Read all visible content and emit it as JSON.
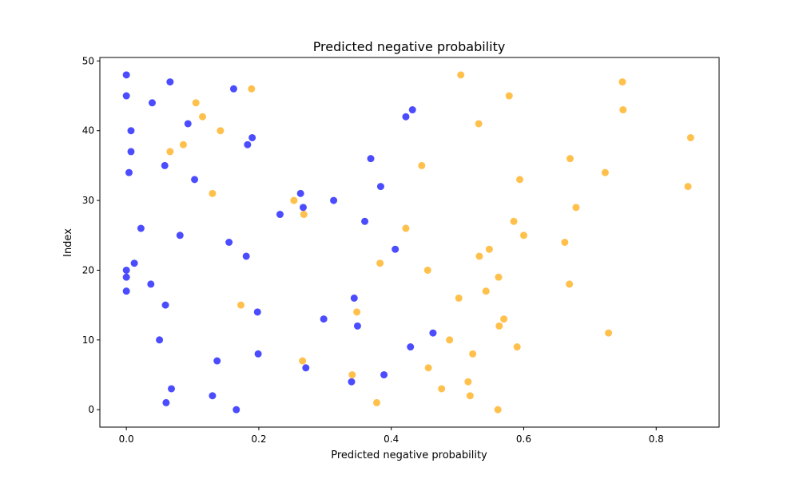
{
  "chart_data": {
    "type": "scatter",
    "title": "Predicted negative probability",
    "xlabel": "Predicted negative probability",
    "ylabel": "Index",
    "xlim": [
      -0.04,
      0.895
    ],
    "ylim": [
      -2.5,
      50.5
    ],
    "x_ticks": [
      0.0,
      0.2,
      0.4,
      0.6,
      0.8
    ],
    "x_tick_labels": [
      "0.0",
      "0.2",
      "0.4",
      "0.6",
      "0.8"
    ],
    "y_ticks": [
      0,
      10,
      20,
      30,
      40,
      50
    ],
    "y_tick_labels": [
      "0",
      "10",
      "20",
      "30",
      "40",
      "50"
    ],
    "grid": false,
    "series": [
      {
        "color": "#0000ff",
        "points": [
          [
            0.166,
            0
          ],
          [
            0.06,
            1
          ],
          [
            0.13,
            2
          ],
          [
            0.068,
            3
          ],
          [
            0.34,
            4
          ],
          [
            0.389,
            5
          ],
          [
            0.271,
            6
          ],
          [
            0.137,
            7
          ],
          [
            0.199,
            8
          ],
          [
            0.429,
            9
          ],
          [
            0.05,
            10
          ],
          [
            0.463,
            11
          ],
          [
            0.349,
            12
          ],
          [
            0.298,
            13
          ],
          [
            0.198,
            14
          ],
          [
            0.059,
            15
          ],
          [
            0.344,
            16
          ],
          [
            0.0,
            17
          ],
          [
            0.037,
            18
          ],
          [
            0.0,
            19
          ],
          [
            0.0,
            20
          ],
          [
            0.012,
            21
          ],
          [
            0.181,
            22
          ],
          [
            0.406,
            23
          ],
          [
            0.155,
            24
          ],
          [
            0.081,
            25
          ],
          [
            0.022,
            26
          ],
          [
            0.36,
            27
          ],
          [
            0.232,
            28
          ],
          [
            0.267,
            29
          ],
          [
            0.313,
            30
          ],
          [
            0.263,
            31
          ],
          [
            0.384,
            32
          ],
          [
            0.103,
            33
          ],
          [
            0.004,
            34
          ],
          [
            0.058,
            35
          ],
          [
            0.369,
            36
          ],
          [
            0.007,
            37
          ],
          [
            0.183,
            38
          ],
          [
            0.19,
            39
          ],
          [
            0.007,
            40
          ],
          [
            0.093,
            41
          ],
          [
            0.422,
            42
          ],
          [
            0.432,
            43
          ],
          [
            0.039,
            44
          ],
          [
            0.0,
            45
          ],
          [
            0.162,
            46
          ],
          [
            0.066,
            47
          ],
          [
            0.0,
            48
          ]
        ]
      },
      {
        "color": "#ffa500",
        "points": [
          [
            0.561,
            0
          ],
          [
            0.378,
            1
          ],
          [
            0.519,
            2
          ],
          [
            0.476,
            3
          ],
          [
            0.516,
            4
          ],
          [
            0.341,
            5
          ],
          [
            0.456,
            6
          ],
          [
            0.266,
            7
          ],
          [
            0.523,
            8
          ],
          [
            0.59,
            9
          ],
          [
            0.488,
            10
          ],
          [
            0.728,
            11
          ],
          [
            0.563,
            12
          ],
          [
            0.57,
            13
          ],
          [
            0.348,
            14
          ],
          [
            0.173,
            15
          ],
          [
            0.502,
            16
          ],
          [
            0.543,
            17
          ],
          [
            0.669,
            18
          ],
          [
            0.562,
            19
          ],
          [
            0.455,
            20
          ],
          [
            0.383,
            21
          ],
          [
            0.533,
            22
          ],
          [
            0.548,
            23
          ],
          [
            0.662,
            24
          ],
          [
            0.6,
            25
          ],
          [
            0.422,
            26
          ],
          [
            0.585,
            27
          ],
          [
            0.268,
            28
          ],
          [
            0.679,
            29
          ],
          [
            0.253,
            30
          ],
          [
            0.13,
            31
          ],
          [
            0.848,
            32
          ],
          [
            0.594,
            33
          ],
          [
            0.723,
            34
          ],
          [
            0.446,
            35
          ],
          [
            0.67,
            36
          ],
          [
            0.066,
            37
          ],
          [
            0.086,
            38
          ],
          [
            0.852,
            39
          ],
          [
            0.142,
            40
          ],
          [
            0.532,
            41
          ],
          [
            0.115,
            42
          ],
          [
            0.75,
            43
          ],
          [
            0.105,
            44
          ],
          [
            0.578,
            45
          ],
          [
            0.189,
            46
          ],
          [
            0.749,
            47
          ],
          [
            0.505,
            48
          ]
        ]
      }
    ]
  }
}
